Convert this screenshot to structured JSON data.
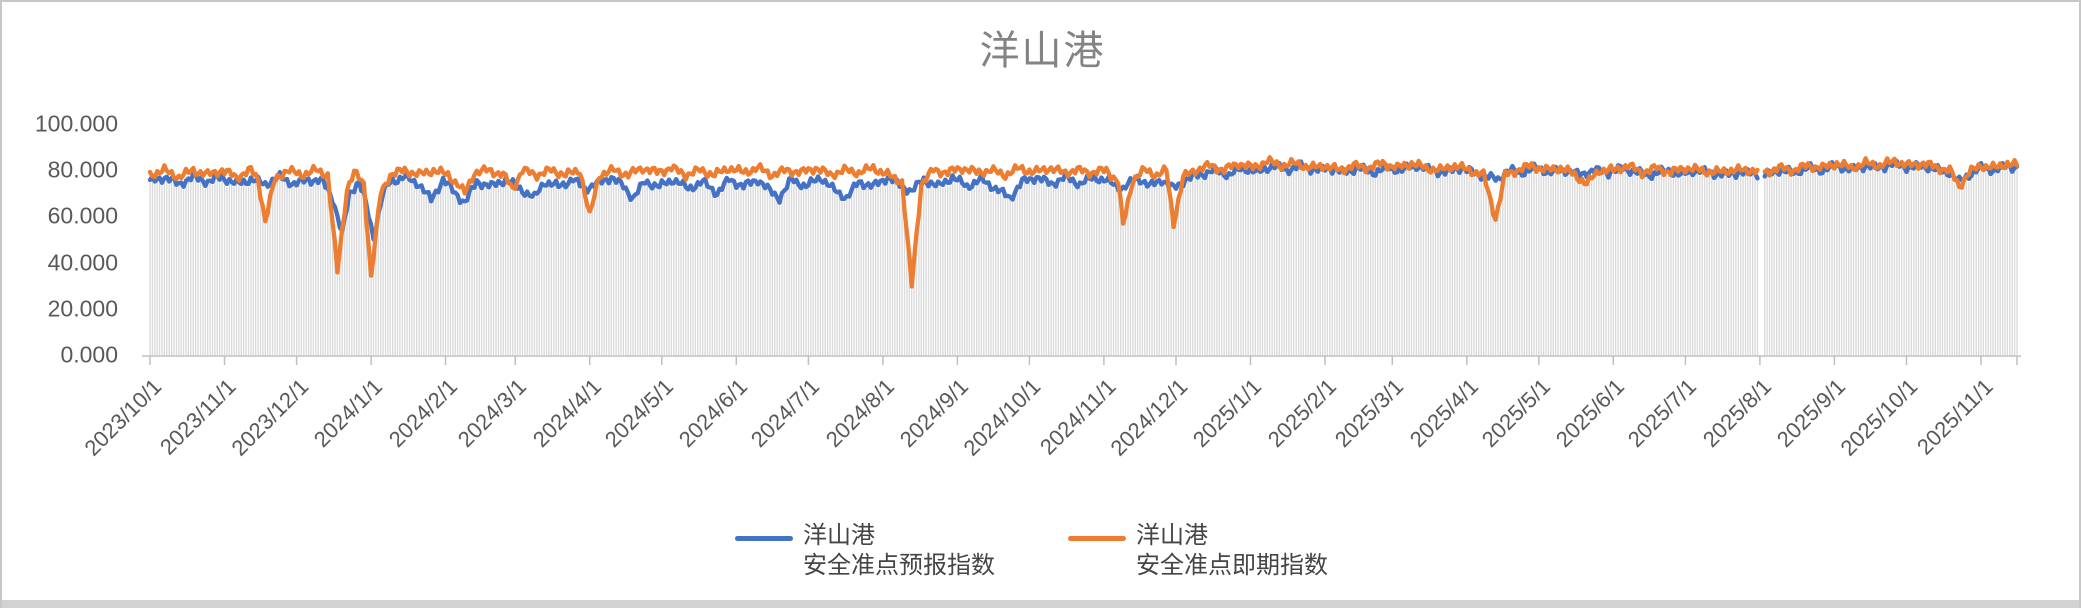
{
  "chart_data": {
    "type": "line",
    "title": "洋山港",
    "start_date": "2023/10/1",
    "total_days": 778,
    "gap_days": [
      670,
      671
    ],
    "ylim": [
      0,
      100
    ],
    "y_tick_values": [
      100,
      80,
      60,
      40,
      20,
      0
    ],
    "y_tick_labels": [
      "100.000",
      "80.000",
      "60.000",
      "40.000",
      "20.000",
      "0.000"
    ],
    "x_tick_days": [
      0,
      31,
      61,
      92,
      123,
      152,
      183,
      213,
      244,
      274,
      305,
      336,
      366,
      397,
      427,
      458,
      489,
      517,
      548,
      578,
      609,
      639,
      670,
      701,
      731,
      762
    ],
    "x_tick_labels": [
      "2023/10/1",
      "2023/11/1",
      "2023/12/1",
      "2024/1/1",
      "2024/2/1",
      "2024/3/1",
      "2024/4/1",
      "2024/5/1",
      "2024/6/1",
      "2024/7/1",
      "2024/8/1",
      "2024/9/1",
      "2024/10/1",
      "2024/11/1",
      "2024/12/1",
      "2025/1/1",
      "2025/2/1",
      "2025/3/1",
      "2025/4/1",
      "2025/5/1",
      "2025/6/1",
      "2025/7/1",
      "2025/8/1",
      "2025/9/1",
      "2025/10/1",
      "2025/11/1"
    ],
    "dropline_color": "#d9d9d9",
    "axis_color": "#bfbfbf",
    "legend": [
      {
        "line1": "洋山港",
        "line2": "安全准点预报指数",
        "color": "#4472C4"
      },
      {
        "line1": "洋山港",
        "line2": "安全准点即期指数",
        "color": "#ED7D31"
      }
    ],
    "series": [
      {
        "name": "洋山港 安全准点预报指数",
        "color": "#4472C4",
        "jitter": {
          "amp": 2.2,
          "phase": 0.0
        },
        "anchors": [
          [
            0,
            75
          ],
          [
            6,
            77
          ],
          [
            12,
            74
          ],
          [
            18,
            77
          ],
          [
            24,
            75
          ],
          [
            30,
            77
          ],
          [
            36,
            74
          ],
          [
            42,
            76
          ],
          [
            48,
            74
          ],
          [
            54,
            77
          ],
          [
            60,
            74
          ],
          [
            66,
            76
          ],
          [
            72,
            75
          ],
          [
            76,
            68
          ],
          [
            80,
            52
          ],
          [
            83,
            70
          ],
          [
            87,
            75
          ],
          [
            90,
            65
          ],
          [
            93,
            51
          ],
          [
            97,
            70
          ],
          [
            100,
            75
          ],
          [
            106,
            77
          ],
          [
            112,
            74
          ],
          [
            117,
            67
          ],
          [
            122,
            76
          ],
          [
            127,
            70
          ],
          [
            131,
            66
          ],
          [
            136,
            75
          ],
          [
            142,
            73
          ],
          [
            148,
            76
          ],
          [
            154,
            72
          ],
          [
            160,
            68
          ],
          [
            164,
            75
          ],
          [
            170,
            73
          ],
          [
            176,
            76
          ],
          [
            181,
            72
          ],
          [
            186,
            74
          ],
          [
            192,
            77
          ],
          [
            197,
            73
          ],
          [
            201,
            68
          ],
          [
            206,
            75
          ],
          [
            212,
            73
          ],
          [
            218,
            76
          ],
          [
            224,
            72
          ],
          [
            230,
            75
          ],
          [
            236,
            70
          ],
          [
            241,
            76
          ],
          [
            247,
            73
          ],
          [
            253,
            76
          ],
          [
            258,
            71
          ],
          [
            262,
            68
          ],
          [
            267,
            76
          ],
          [
            273,
            73
          ],
          [
            279,
            77
          ],
          [
            284,
            72
          ],
          [
            290,
            68
          ],
          [
            295,
            75
          ],
          [
            301,
            73
          ],
          [
            307,
            77
          ],
          [
            313,
            73
          ],
          [
            317,
            71
          ],
          [
            322,
            76
          ],
          [
            328,
            73
          ],
          [
            334,
            77
          ],
          [
            340,
            73
          ],
          [
            346,
            76
          ],
          [
            352,
            72
          ],
          [
            358,
            68
          ],
          [
            363,
            75
          ],
          [
            369,
            77
          ],
          [
            375,
            74
          ],
          [
            381,
            77
          ],
          [
            387,
            74
          ],
          [
            393,
            77
          ],
          [
            399,
            75
          ],
          [
            405,
            72
          ],
          [
            411,
            77
          ],
          [
            416,
            73
          ],
          [
            421,
            76
          ],
          [
            426,
            72
          ],
          [
            431,
            76
          ],
          [
            437,
            78
          ],
          [
            443,
            80
          ],
          [
            449,
            78
          ],
          [
            455,
            81
          ],
          [
            461,
            79
          ],
          [
            467,
            82
          ],
          [
            473,
            80
          ],
          [
            479,
            82
          ],
          [
            485,
            80
          ],
          [
            491,
            81
          ],
          [
            497,
            79
          ],
          [
            503,
            81
          ],
          [
            509,
            79
          ],
          [
            515,
            81
          ],
          [
            521,
            80
          ],
          [
            527,
            82
          ],
          [
            533,
            80
          ],
          [
            539,
            79
          ],
          [
            545,
            81
          ],
          [
            551,
            79
          ],
          [
            557,
            77
          ],
          [
            561,
            76
          ],
          [
            565,
            80
          ],
          [
            571,
            79
          ],
          [
            577,
            81
          ],
          [
            583,
            79
          ],
          [
            589,
            80
          ],
          [
            595,
            78
          ],
          [
            601,
            80
          ],
          [
            607,
            79
          ],
          [
            613,
            81
          ],
          [
            619,
            79
          ],
          [
            625,
            78
          ],
          [
            631,
            80
          ],
          [
            637,
            78
          ],
          [
            643,
            80
          ],
          [
            649,
            79
          ],
          [
            655,
            78
          ],
          [
            661,
            79
          ],
          [
            667,
            79
          ],
          [
            672,
            78
          ],
          [
            678,
            80
          ],
          [
            684,
            79
          ],
          [
            690,
            81
          ],
          [
            696,
            80
          ],
          [
            702,
            82
          ],
          [
            708,
            80
          ],
          [
            714,
            82
          ],
          [
            720,
            81
          ],
          [
            726,
            83
          ],
          [
            732,
            81
          ],
          [
            738,
            82
          ],
          [
            744,
            80
          ],
          [
            749,
            79
          ],
          [
            753,
            75
          ],
          [
            757,
            78
          ],
          [
            762,
            81
          ],
          [
            768,
            80
          ],
          [
            773,
            82
          ],
          [
            777,
            81
          ]
        ]
      },
      {
        "name": "洋山港 安全准点即期指数",
        "color": "#ED7D31",
        "jitter": {
          "amp": 2.2,
          "phase": 1.3
        },
        "anchors": [
          [
            0,
            78
          ],
          [
            6,
            80
          ],
          [
            12,
            77
          ],
          [
            18,
            80
          ],
          [
            24,
            78
          ],
          [
            30,
            80
          ],
          [
            36,
            77
          ],
          [
            42,
            80
          ],
          [
            45,
            76
          ],
          [
            48,
            58
          ],
          [
            52,
            76
          ],
          [
            57,
            80
          ],
          [
            63,
            78
          ],
          [
            69,
            80
          ],
          [
            74,
            78
          ],
          [
            78,
            36
          ],
          [
            82,
            72
          ],
          [
            85,
            79
          ],
          [
            89,
            74
          ],
          [
            92,
            34
          ],
          [
            96,
            70
          ],
          [
            100,
            78
          ],
          [
            106,
            80
          ],
          [
            112,
            78
          ],
          [
            118,
            80
          ],
          [
            124,
            78
          ],
          [
            128,
            74
          ],
          [
            131,
            70
          ],
          [
            135,
            79
          ],
          [
            141,
            80
          ],
          [
            147,
            78
          ],
          [
            151,
            72
          ],
          [
            155,
            80
          ],
          [
            161,
            78
          ],
          [
            167,
            80
          ],
          [
            173,
            78
          ],
          [
            179,
            80
          ],
          [
            183,
            60
          ],
          [
            187,
            78
          ],
          [
            193,
            80
          ],
          [
            199,
            78
          ],
          [
            205,
            81
          ],
          [
            211,
            79
          ],
          [
            217,
            81
          ],
          [
            223,
            78
          ],
          [
            229,
            80
          ],
          [
            235,
            78
          ],
          [
            241,
            81
          ],
          [
            247,
            79
          ],
          [
            253,
            81
          ],
          [
            259,
            78
          ],
          [
            265,
            80
          ],
          [
            271,
            79
          ],
          [
            277,
            81
          ],
          [
            283,
            78
          ],
          [
            289,
            80
          ],
          [
            295,
            79
          ],
          [
            301,
            81
          ],
          [
            307,
            78
          ],
          [
            313,
            75
          ],
          [
            317,
            30
          ],
          [
            321,
            74
          ],
          [
            326,
            80
          ],
          [
            332,
            79
          ],
          [
            338,
            81
          ],
          [
            344,
            79
          ],
          [
            350,
            80
          ],
          [
            356,
            78
          ],
          [
            362,
            81
          ],
          [
            368,
            79
          ],
          [
            374,
            81
          ],
          [
            380,
            79
          ],
          [
            386,
            80
          ],
          [
            392,
            79
          ],
          [
            398,
            80
          ],
          [
            403,
            75
          ],
          [
            405,
            56
          ],
          [
            409,
            76
          ],
          [
            414,
            80
          ],
          [
            419,
            78
          ],
          [
            423,
            80
          ],
          [
            426,
            57
          ],
          [
            430,
            77
          ],
          [
            435,
            80
          ],
          [
            441,
            82
          ],
          [
            447,
            80
          ],
          [
            453,
            83
          ],
          [
            459,
            81
          ],
          [
            465,
            84
          ],
          [
            471,
            82
          ],
          [
            477,
            83
          ],
          [
            483,
            81
          ],
          [
            489,
            82
          ],
          [
            495,
            80
          ],
          [
            501,
            82
          ],
          [
            507,
            81
          ],
          [
            513,
            83
          ],
          [
            519,
            81
          ],
          [
            525,
            83
          ],
          [
            531,
            81
          ],
          [
            537,
            80
          ],
          [
            543,
            82
          ],
          [
            549,
            80
          ],
          [
            555,
            78
          ],
          [
            560,
            59
          ],
          [
            564,
            78
          ],
          [
            569,
            80
          ],
          [
            575,
            82
          ],
          [
            581,
            80
          ],
          [
            587,
            81
          ],
          [
            593,
            78
          ],
          [
            598,
            74
          ],
          [
            603,
            80
          ],
          [
            609,
            80
          ],
          [
            615,
            82
          ],
          [
            621,
            79
          ],
          [
            627,
            81
          ],
          [
            633,
            79
          ],
          [
            639,
            81
          ],
          [
            645,
            80
          ],
          [
            651,
            79
          ],
          [
            657,
            80
          ],
          [
            663,
            80
          ],
          [
            667,
            80
          ],
          [
            672,
            79
          ],
          [
            678,
            81
          ],
          [
            684,
            80
          ],
          [
            690,
            82
          ],
          [
            696,
            81
          ],
          [
            702,
            83
          ],
          [
            708,
            81
          ],
          [
            714,
            83
          ],
          [
            720,
            82
          ],
          [
            726,
            84
          ],
          [
            732,
            82
          ],
          [
            738,
            83
          ],
          [
            744,
            81
          ],
          [
            749,
            80
          ],
          [
            753,
            73
          ],
          [
            757,
            79
          ],
          [
            762,
            82
          ],
          [
            768,
            81
          ],
          [
            773,
            83
          ],
          [
            777,
            82
          ]
        ]
      }
    ]
  }
}
